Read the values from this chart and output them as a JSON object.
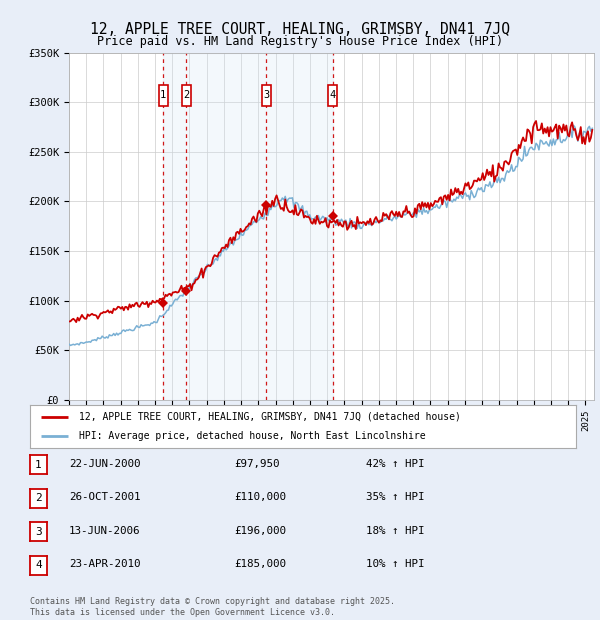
{
  "title": "12, APPLE TREE COURT, HEALING, GRIMSBY, DN41 7JQ",
  "subtitle": "Price paid vs. HM Land Registry's House Price Index (HPI)",
  "ylim": [
    0,
    350000
  ],
  "yticks": [
    0,
    50000,
    100000,
    150000,
    200000,
    250000,
    300000,
    350000
  ],
  "ytick_labels": [
    "£0",
    "£50K",
    "£100K",
    "£150K",
    "£200K",
    "£250K",
    "£300K",
    "£350K"
  ],
  "xlim_start": 1995.0,
  "xlim_end": 2025.5,
  "line1_color": "#cc0000",
  "line2_color": "#7ab0d4",
  "transaction_color": "#cc0000",
  "shade_color": "#d0e4f5",
  "transactions": [
    {
      "id": 1,
      "date": "22-JUN-2000",
      "year": 2000.47,
      "price": 97950
    },
    {
      "id": 2,
      "date": "26-OCT-2001",
      "year": 2001.82,
      "price": 110000
    },
    {
      "id": 3,
      "date": "13-JUN-2006",
      "year": 2006.45,
      "price": 196000
    },
    {
      "id": 4,
      "date": "23-APR-2010",
      "year": 2010.31,
      "price": 185000
    }
  ],
  "legend_line1": "12, APPLE TREE COURT, HEALING, GRIMSBY, DN41 7JQ (detached house)",
  "legend_line2": "HPI: Average price, detached house, North East Lincolnshire",
  "table_rows": [
    [
      "1",
      "22-JUN-2000",
      "£97,950",
      "42% ↑ HPI"
    ],
    [
      "2",
      "26-OCT-2001",
      "£110,000",
      "35% ↑ HPI"
    ],
    [
      "3",
      "13-JUN-2006",
      "£196,000",
      "18% ↑ HPI"
    ],
    [
      "4",
      "23-APR-2010",
      "£185,000",
      "10% ↑ HPI"
    ]
  ],
  "footnote1": "Contains HM Land Registry data © Crown copyright and database right 2025.",
  "footnote2": "This data is licensed under the Open Government Licence v3.0.",
  "background_color": "#e8eef8",
  "plot_bg_color": "#ffffff",
  "grid_color": "#cccccc"
}
